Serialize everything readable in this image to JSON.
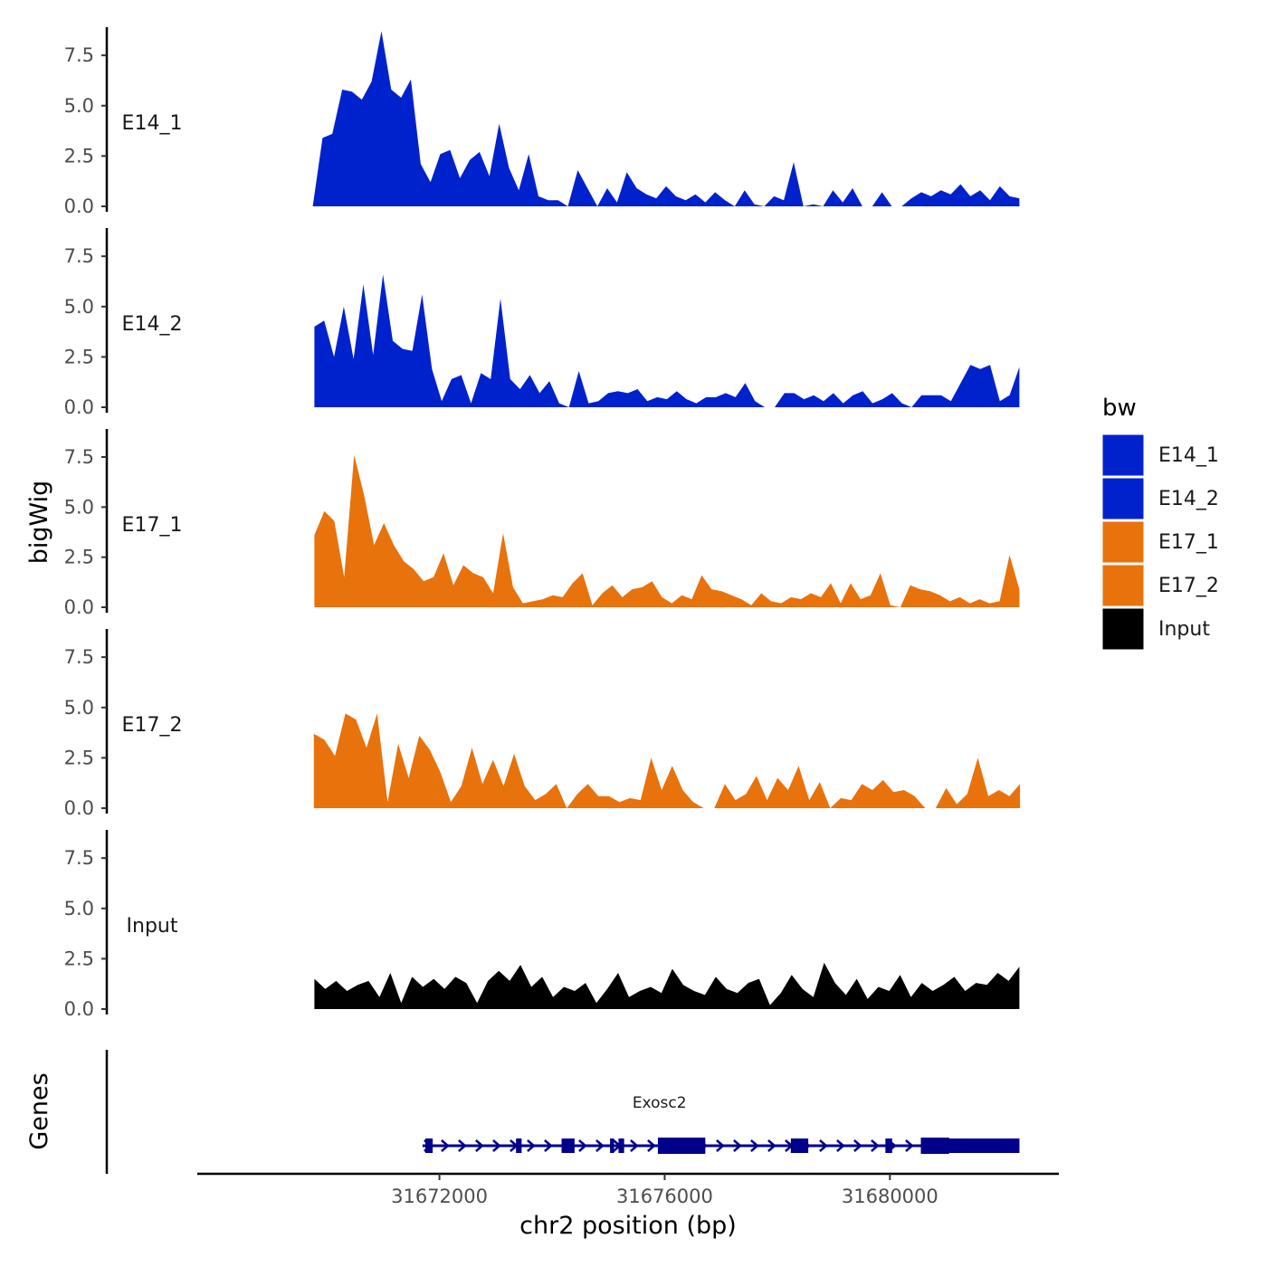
{
  "chart_data": {
    "type": "area",
    "chromosome": "chr2",
    "xlabel": "chr2 position (bp)",
    "ylabel": "bigWig",
    "genes_label": "Genes",
    "xlim": [
      31667700,
      31683000
    ],
    "xticks": [
      31672000,
      31676000,
      31680000
    ],
    "xtick_labels": [
      "31672000",
      "31676000",
      "31680000"
    ],
    "ylim": [
      0,
      8.9
    ],
    "yticks": [
      0.0,
      2.5,
      5.0,
      7.5
    ],
    "ytick_labels": [
      "0.0",
      "2.5",
      "5.0",
      "7.5"
    ],
    "legend": {
      "title": "bw",
      "position": "right",
      "entries": [
        {
          "label": "E14_1",
          "color": "#0022CC"
        },
        {
          "label": "E14_2",
          "color": "#0022CC"
        },
        {
          "label": "E17_1",
          "color": "#E8720C"
        },
        {
          "label": "E17_2",
          "color": "#E8720C"
        },
        {
          "label": "Input",
          "color": "#000000"
        }
      ]
    },
    "series": [
      {
        "name": "E14_1",
        "color": "#0022CC",
        "x_start": 31669750,
        "x_end": 31682300,
        "values": [
          0.0,
          3.4,
          3.6,
          5.8,
          5.7,
          5.3,
          6.2,
          8.7,
          5.8,
          5.4,
          6.3,
          2.1,
          1.2,
          2.6,
          2.8,
          1.4,
          2.3,
          2.7,
          1.5,
          4.1,
          1.9,
          0.8,
          2.6,
          0.5,
          0.3,
          0.3,
          0.0,
          1.8,
          0.9,
          0.0,
          0.9,
          0.2,
          1.7,
          0.9,
          0.6,
          0.4,
          1.0,
          0.5,
          0.3,
          0.6,
          0.2,
          0.7,
          0.3,
          0.0,
          0.8,
          0.1,
          0.0,
          0.5,
          0.3,
          2.2,
          0.0,
          0.1,
          0.0,
          0.8,
          0.2,
          0.9,
          0.0,
          0.0,
          0.7,
          0.0,
          0.0,
          0.4,
          0.7,
          0.5,
          0.8,
          0.6,
          1.1,
          0.5,
          0.8,
          0.3,
          1.0,
          0.5,
          0.4
        ]
      },
      {
        "name": "E14_2",
        "color": "#0022CC",
        "x_start": 31669780,
        "x_end": 31682300,
        "values": [
          4.0,
          4.3,
          2.5,
          5.0,
          2.4,
          6.1,
          2.6,
          6.6,
          3.3,
          2.9,
          2.8,
          5.6,
          1.9,
          0.3,
          1.4,
          1.6,
          0.2,
          1.7,
          1.4,
          5.4,
          1.4,
          0.9,
          1.6,
          0.7,
          1.3,
          0.2,
          0.0,
          1.8,
          0.2,
          0.3,
          0.7,
          0.8,
          0.7,
          0.9,
          0.3,
          0.5,
          0.4,
          0.8,
          0.4,
          0.2,
          0.5,
          0.5,
          0.7,
          0.5,
          1.2,
          0.3,
          0.0,
          0.0,
          0.7,
          0.7,
          0.4,
          0.6,
          0.3,
          0.7,
          0.2,
          0.6,
          0.8,
          0.2,
          0.4,
          0.7,
          0.2,
          0.0,
          0.6,
          0.6,
          0.6,
          0.3,
          1.2,
          2.1,
          1.9,
          2.1,
          0.3,
          0.6,
          2.0
        ]
      },
      {
        "name": "E17_1",
        "color": "#E8720C",
        "x_start": 31669780,
        "x_end": 31682300,
        "values": [
          3.6,
          4.8,
          4.3,
          1.5,
          7.6,
          5.6,
          3.1,
          4.2,
          3.1,
          2.3,
          1.9,
          1.3,
          1.5,
          2.7,
          1.1,
          2.1,
          1.7,
          1.5,
          0.7,
          3.7,
          1.0,
          0.2,
          0.3,
          0.4,
          0.6,
          0.5,
          1.2,
          1.7,
          0.1,
          0.7,
          1.1,
          0.5,
          0.9,
          1.0,
          1.3,
          0.5,
          0.2,
          0.6,
          0.4,
          1.6,
          0.9,
          0.8,
          0.6,
          0.4,
          0.1,
          0.7,
          0.3,
          0.2,
          0.5,
          0.4,
          0.7,
          0.5,
          1.2,
          0.2,
          1.2,
          0.4,
          0.6,
          1.7,
          0.1,
          0.0,
          1.1,
          0.9,
          0.8,
          0.6,
          0.3,
          0.5,
          0.2,
          0.4,
          0.2,
          0.3,
          2.6,
          0.9
        ]
      },
      {
        "name": "E17_2",
        "color": "#E8720C",
        "x_start": 31669770,
        "x_end": 31682310,
        "values": [
          3.7,
          3.4,
          2.6,
          4.7,
          4.4,
          3.0,
          4.7,
          0.3,
          3.2,
          1.5,
          3.6,
          2.9,
          1.8,
          0.3,
          1.1,
          3.0,
          1.2,
          2.4,
          1.1,
          2.7,
          1.1,
          0.4,
          0.7,
          1.2,
          0.0,
          0.7,
          1.2,
          0.6,
          0.6,
          0.3,
          0.5,
          0.4,
          2.5,
          0.9,
          2.1,
          0.9,
          0.3,
          0.0,
          0.0,
          1.2,
          0.4,
          0.7,
          1.6,
          0.4,
          1.5,
          0.9,
          2.1,
          0.4,
          1.3,
          0.0,
          0.5,
          0.4,
          1.2,
          0.9,
          1.4,
          0.8,
          0.9,
          0.6,
          0.0,
          0.0,
          1.0,
          0.2,
          0.7,
          2.5,
          0.6,
          0.9,
          0.6,
          1.2
        ]
      },
      {
        "name": "Input",
        "color": "#000000",
        "x_start": 31669780,
        "x_end": 31682300,
        "values": [
          1.5,
          1.0,
          1.4,
          0.9,
          1.2,
          1.4,
          0.6,
          1.8,
          0.3,
          1.6,
          1.1,
          1.5,
          1.0,
          1.6,
          1.3,
          0.3,
          1.4,
          1.9,
          1.4,
          2.2,
          1.1,
          1.6,
          0.6,
          1.1,
          0.9,
          1.3,
          0.3,
          1.0,
          1.8,
          0.6,
          0.9,
          1.1,
          0.8,
          2.0,
          1.2,
          0.9,
          0.7,
          1.6,
          1.0,
          0.8,
          1.3,
          1.5,
          0.2,
          0.8,
          1.7,
          1.0,
          0.6,
          2.3,
          1.3,
          0.7,
          1.5,
          0.5,
          1.1,
          0.9,
          1.7,
          0.6,
          1.3,
          0.9,
          1.2,
          1.6,
          0.9,
          1.3,
          1.2,
          1.8,
          1.4,
          2.1
        ]
      }
    ],
    "genes": [
      {
        "name": "Exosc2",
        "strand": "+",
        "start": 31671700,
        "end": 31682300,
        "exons": [
          [
            31671750,
            31671880
          ],
          [
            31673360,
            31673460
          ],
          [
            31674170,
            31674400
          ],
          [
            31675030,
            31675100
          ],
          [
            31675180,
            31675280
          ],
          [
            31675880,
            31676720
          ],
          [
            31678240,
            31678550
          ],
          [
            31679920,
            31680040
          ],
          [
            31680550,
            31682300
          ]
        ],
        "thick_exons": [
          [
            31675880,
            31676720
          ],
          [
            31680550,
            31681050
          ]
        ]
      }
    ]
  }
}
